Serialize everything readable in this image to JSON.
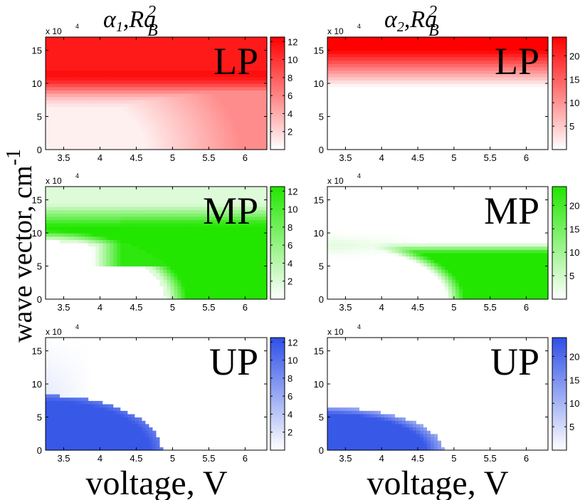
{
  "figure": {
    "xlabel": "voltage, V",
    "ylabel_main": "wave vector, cm",
    "ylabel_sup": "-1",
    "y_multiplier": "x 10",
    "y_multiplier_exp": "4"
  },
  "columns": [
    {
      "title_greek": "α",
      "title_sub": "1",
      "title_rest": ",Ra",
      "title_sup": "2",
      "title_sub2": "B"
    },
    {
      "title_greek": "α",
      "title_sub": "2",
      "title_rest": ",Ra",
      "title_sup": "2",
      "title_sub2": "B"
    }
  ],
  "chart_data": [
    {
      "type": "heatmap",
      "panel": "LP",
      "quantity": "alpha_1 Ra_B^2",
      "color": "#ff0000",
      "x_range": [
        3.25,
        6.3
      ],
      "y_range": [
        0,
        17
      ],
      "x_ticks": [
        "3.5",
        "4",
        "4.5",
        "5",
        "5.5",
        "6"
      ],
      "x_tick_values": [
        3.5,
        4,
        4.5,
        5,
        5.5,
        6
      ],
      "y_ticks": [
        "0",
        "5",
        "10",
        "15"
      ],
      "y_tick_values": [
        0,
        5,
        10,
        15
      ],
      "colorbar_range": [
        0,
        12.5
      ],
      "colorbar_ticks": [
        "2",
        "4",
        "6",
        "8",
        "10",
        "12"
      ],
      "colorbar_tick_values": [
        2,
        4,
        6,
        8,
        10,
        12
      ]
    },
    {
      "type": "heatmap",
      "panel": "LP",
      "quantity": "alpha_2 Ra_B^2",
      "color": "#ff0000",
      "x_range": [
        3.25,
        6.3
      ],
      "y_range": [
        0,
        17
      ],
      "x_ticks": [
        "3.5",
        "4",
        "4.5",
        "5",
        "5.5",
        "6"
      ],
      "x_tick_values": [
        3.5,
        4,
        4.5,
        5,
        5.5,
        6
      ],
      "y_ticks": [
        "0",
        "5",
        "10",
        "15"
      ],
      "y_tick_values": [
        0,
        5,
        10,
        15
      ],
      "colorbar_range": [
        0,
        24
      ],
      "colorbar_ticks": [
        "5",
        "10",
        "15",
        "20"
      ],
      "colorbar_tick_values": [
        5,
        10,
        15,
        20
      ]
    },
    {
      "type": "heatmap",
      "panel": "MP",
      "quantity": "alpha_1 Ra_B^2",
      "color": "#22e600",
      "x_range": [
        3.25,
        6.3
      ],
      "y_range": [
        0,
        17
      ],
      "x_ticks": [
        "3.5",
        "4",
        "4.5",
        "5",
        "5.5",
        "6"
      ],
      "x_tick_values": [
        3.5,
        4,
        4.5,
        5,
        5.5,
        6
      ],
      "y_ticks": [
        "0",
        "5",
        "10",
        "15"
      ],
      "y_tick_values": [
        0,
        5,
        10,
        15
      ],
      "colorbar_range": [
        0,
        12.5
      ],
      "colorbar_ticks": [
        "2",
        "4",
        "6",
        "8",
        "10",
        "12"
      ],
      "colorbar_tick_values": [
        2,
        4,
        6,
        8,
        10,
        12
      ]
    },
    {
      "type": "heatmap",
      "panel": "MP",
      "quantity": "alpha_2 Ra_B^2",
      "color": "#22e600",
      "x_range": [
        3.25,
        6.3
      ],
      "y_range": [
        0,
        17
      ],
      "x_ticks": [
        "3.5",
        "4",
        "4.5",
        "5",
        "5.5",
        "6"
      ],
      "x_tick_values": [
        3.5,
        4,
        4.5,
        5,
        5.5,
        6
      ],
      "y_ticks": [
        "0",
        "5",
        "10",
        "15"
      ],
      "y_tick_values": [
        0,
        5,
        10,
        15
      ],
      "colorbar_range": [
        0,
        24
      ],
      "colorbar_ticks": [
        "5",
        "10",
        "15",
        "20"
      ],
      "colorbar_tick_values": [
        5,
        10,
        15,
        20
      ]
    },
    {
      "type": "heatmap",
      "panel": "UP",
      "quantity": "alpha_1 Ra_B^2",
      "color": "#2e4fe6",
      "x_range": [
        3.25,
        6.3
      ],
      "y_range": [
        0,
        17
      ],
      "x_ticks": [
        "3.5",
        "4",
        "4.5",
        "5",
        "5.5",
        "6"
      ],
      "x_tick_values": [
        3.5,
        4,
        4.5,
        5,
        5.5,
        6
      ],
      "y_ticks": [
        "0",
        "5",
        "10",
        "15"
      ],
      "y_tick_values": [
        0,
        5,
        10,
        15
      ],
      "colorbar_range": [
        0,
        12.5
      ],
      "colorbar_ticks": [
        "2",
        "4",
        "6",
        "8",
        "10",
        "12"
      ],
      "colorbar_tick_values": [
        2,
        4,
        6,
        8,
        10,
        12
      ]
    },
    {
      "type": "heatmap",
      "panel": "UP",
      "quantity": "alpha_2 Ra_B^2",
      "color": "#2e4fe6",
      "x_range": [
        3.25,
        6.3
      ],
      "y_range": [
        0,
        17
      ],
      "x_ticks": [
        "3.5",
        "4",
        "4.5",
        "5",
        "5.5",
        "6"
      ],
      "x_tick_values": [
        3.5,
        4,
        4.5,
        5,
        5.5,
        6
      ],
      "y_ticks": [
        "0",
        "5",
        "10",
        "15"
      ],
      "y_tick_values": [
        0,
        5,
        10,
        15
      ],
      "colorbar_range": [
        0,
        24
      ],
      "colorbar_ticks": [
        "5",
        "10",
        "15",
        "20"
      ],
      "colorbar_tick_values": [
        5,
        10,
        15,
        20
      ]
    }
  ]
}
